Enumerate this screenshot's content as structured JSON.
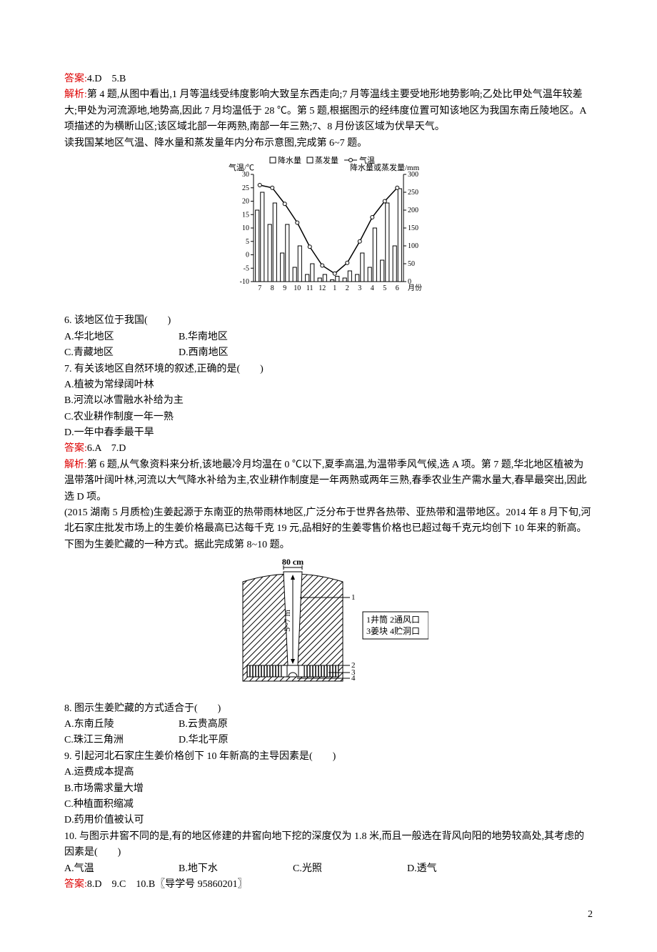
{
  "ans45": {
    "label": "答案:",
    "text": "4.D　5.B"
  },
  "exp45": {
    "label": "解析:",
    "text": "第 4 题,从图中看出,1 月等温线受纬度影响大致呈东西走向;7 月等温线主要受地形地势影响;乙处比甲处气温年较差大;甲处为河流源地,地势高,因此 7 月均温低于 28 ℃。第 5 题,根据图示的经纬度位置可知该地区为我国东南丘陵地区。A 项描述的为横断山区;该区域北部一年两熟,南部一年三熟;7、8 月份该区域为伏旱天气。"
  },
  "intro67": "读我国某地区气温、降水量和蒸发量年内分布示意图,完成第 6~7 题。",
  "chart67": {
    "type": "combo-bar-line",
    "legend": [
      "降水量",
      "蒸发量",
      "气温"
    ],
    "yl_label": "气温/℃",
    "yr_label": "降水量或蒸发量/mm",
    "x_label": "月份",
    "months": [
      "7",
      "8",
      "9",
      "10",
      "11",
      "12",
      "1",
      "2",
      "3",
      "4",
      "5",
      "6"
    ],
    "yl_ticks": [
      -10,
      -5,
      0,
      5,
      10,
      15,
      20,
      25,
      30
    ],
    "yr_ticks": [
      0,
      50,
      100,
      150,
      200,
      250,
      300
    ],
    "precip": [
      200,
      160,
      80,
      40,
      20,
      10,
      5,
      10,
      20,
      40,
      60,
      100
    ],
    "evap": [
      250,
      220,
      160,
      100,
      50,
      20,
      15,
      30,
      80,
      150,
      220,
      260
    ],
    "temp": [
      26,
      25,
      19,
      12,
      3,
      -4,
      -7,
      -3,
      5,
      14,
      20,
      25
    ],
    "colors": {
      "precip": "#ffffff",
      "evap": "#ffffff",
      "line": "#000",
      "grid": "#000",
      "bg": "#fff"
    },
    "bar_stroke": "#000",
    "tick_fontsize": 10,
    "label_fontsize": 11
  },
  "q6": {
    "stem": "6. 该地区位于我国(　　)",
    "opts": {
      "A": "A.华北地区",
      "B": "B.华南地区",
      "C": "C.青藏地区",
      "D": "D.西南地区"
    }
  },
  "q7": {
    "stem": "7. 有关该地区自然环境的叙述,正确的是(　　)",
    "A": "A.植被为常绿阔叶林",
    "B": "B.河流以冰雪融水补给为主",
    "C": "C.农业耕作制度一年一熟",
    "D": "D.一年中春季最干旱"
  },
  "ans67": {
    "label": "答案:",
    "text": "6.A　7.D"
  },
  "exp67": {
    "label": "解析:",
    "text": "第 6 题,从气象资料来分析,该地最冷月均温在 0 ℃以下,夏季高温,为温带季风气候,选 A 项。第 7 题,华北地区植被为温带落叶阔叶林,河流以大气降水补给为主,农业耕作制度是一年两熟或两年三熟,春季农业生产需水量大,春旱最突出,因此选 D 项。"
  },
  "intro810": "(2015 湖南 5 月质检)生姜起源于东南亚的热带雨林地区,广泛分布于世界各热带、亚热带和温带地区。2014 年 8 月下旬,河北石家庄批发市场上的生姜价格最高已达每千克 19 元,品相好的生姜零售价格也已超过每千克元均创下 10 年来的新高。下图为生姜贮藏的一种方式。据此完成第 8~10 题。",
  "diagram810": {
    "type": "cross-section",
    "width_label": "80 cm",
    "depth_label": "5~7 m",
    "legend": [
      {
        "n": "1",
        "t": "井筒"
      },
      {
        "n": "2",
        "t": "通风口"
      },
      {
        "n": "3",
        "t": "姜块"
      },
      {
        "n": "4",
        "t": "贮洞口"
      }
    ],
    "colors": {
      "hatch": "#000",
      "bg": "#fff",
      "stroke": "#000"
    }
  },
  "q8": {
    "stem": "8. 图示生姜贮藏的方式适合于(　　)",
    "opts": {
      "A": "A.东南丘陵",
      "B": "B.云贵高原",
      "C": "C.珠江三角洲",
      "D": "D.华北平原"
    }
  },
  "q9": {
    "stem": "9. 引起河北石家庄生姜价格创下 10 年新高的主导因素是(　　)",
    "A": "A.运费成本提高",
    "B": "B.市场需求量大增",
    "C": "C.种植面积缩减",
    "D": "D.药用价值被认可"
  },
  "q10": {
    "stem": "10. 与图示井窖不同的是,有的地区修建的井窖向地下挖的深度仅为 1.8 米,而且一般选在背风向阳的地势较高处,其考虑的因素是(　　)",
    "opts": {
      "A": "A.气温",
      "B": "B.地下水",
      "C": "C.光照",
      "D": "D.透气"
    }
  },
  "ans810": {
    "label": "答案:",
    "text": "8.D　9.C　10.B〖导学号 95860201〗"
  },
  "pagenum": "2"
}
